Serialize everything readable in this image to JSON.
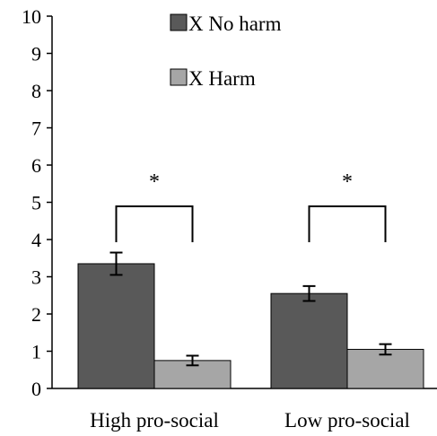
{
  "chart_data": {
    "type": "bar",
    "title": "",
    "xlabel": "",
    "ylabel": "",
    "ylim": [
      0,
      10
    ],
    "yticks": [
      "0",
      "1",
      "2",
      "3",
      "4",
      "5",
      "6",
      "7",
      "8",
      "9",
      "10"
    ],
    "grid": false,
    "legend_position": "top-center",
    "categories": [
      "High pro-social",
      "Low pro-social"
    ],
    "series": [
      {
        "name": "X No harm",
        "color": "#595959",
        "values": [
          3.35,
          2.55
        ],
        "errors": [
          0.3,
          0.2
        ]
      },
      {
        "name": "X Harm",
        "color": "#a6a6a6",
        "values": [
          0.75,
          1.05
        ],
        "errors": [
          0.13,
          0.14
        ]
      }
    ],
    "annotations": [
      {
        "category": "High pro-social",
        "text": "*"
      },
      {
        "category": "Low pro-social",
        "text": "*"
      }
    ]
  }
}
